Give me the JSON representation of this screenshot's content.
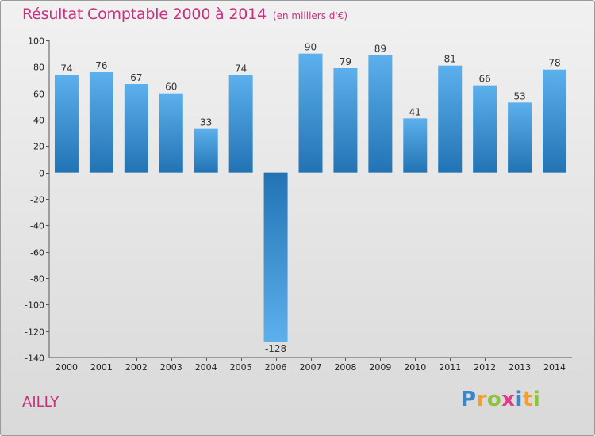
{
  "chart_data": {
    "type": "bar",
    "title": "Résultat Comptable 2000 à 2014",
    "subtitle": "(en milliers d'€)",
    "categories": [
      "2000",
      "2001",
      "2002",
      "2003",
      "2004",
      "2005",
      "2006",
      "2007",
      "2008",
      "2009",
      "2010",
      "2011",
      "2012",
      "2013",
      "2014"
    ],
    "values": [
      74,
      76,
      67,
      60,
      33,
      74,
      -128,
      90,
      79,
      89,
      41,
      81,
      66,
      53,
      78
    ],
    "ylim": [
      -140,
      100
    ],
    "yticks": [
      100,
      80,
      60,
      40,
      20,
      0,
      -20,
      -40,
      -60,
      -80,
      -100,
      -120,
      -140
    ],
    "xlabel": "",
    "ylabel": "",
    "grid": false,
    "bar_color_light": "#5cb0ec",
    "bar_color_dark": "#2273b4"
  },
  "commune": "AILLY",
  "brand": {
    "letters": [
      "P",
      "r",
      "o",
      "x",
      "i",
      "t",
      "i"
    ],
    "colors": [
      "#3d86c6",
      "#f0a030",
      "#8cc43c",
      "#e03c8c",
      "#3d86c6",
      "#f0a030",
      "#8cc43c"
    ]
  },
  "colors": {
    "title": "#c8307f",
    "background": "#e6e6e6"
  }
}
